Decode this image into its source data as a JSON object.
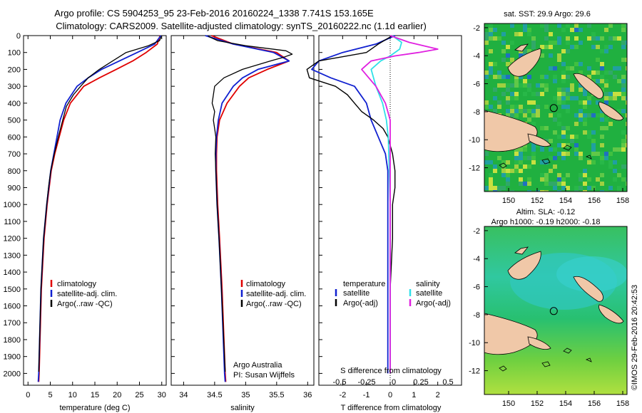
{
  "title_line1": "Argo profile: CS 5904253_95 23-Feb-2016 20160224_1338 7.741S 153.165E",
  "title_line2": "Climatology: CARS2009. Satellite-adjusted climatology: synTS_20160222.nc (1.1d earlier)",
  "colors": {
    "climatology": "#e00000",
    "satellite": "#1020d0",
    "argo": "#000000",
    "sal_sat": "#30e0e8",
    "sal_argo": "#e020e0",
    "land": "#f0c8a8",
    "map_bg": "#20b040"
  },
  "chart_data": [
    {
      "type": "line",
      "id": "temperature",
      "xlabel": "temperature (deg C)",
      "ylabel": "",
      "xlim": [
        -1,
        31
      ],
      "ylim": [
        2070,
        0
      ],
      "xticks": [
        0,
        5,
        10,
        15,
        20,
        25,
        30
      ],
      "yticks": [
        0,
        100,
        200,
        300,
        400,
        500,
        600,
        700,
        800,
        900,
        1000,
        1100,
        1200,
        1300,
        1400,
        1500,
        1600,
        1700,
        1800,
        1900,
        2000
      ],
      "legend": [
        "climatology",
        "satellite-adj. clim.",
        "Argo(..raw -QC)"
      ],
      "series": [
        {
          "name": "climatology",
          "depth": [
            0,
            50,
            100,
            150,
            200,
            250,
            300,
            400,
            500,
            600,
            700,
            800,
            1000,
            1200,
            1500,
            1800,
            2000,
            2050
          ],
          "values": [
            29.6,
            29.0,
            26.5,
            23.5,
            19.8,
            16.0,
            12.5,
            9.5,
            8.0,
            7.0,
            6.0,
            5.2,
            4.3,
            3.6,
            3.0,
            2.7,
            2.5,
            2.4
          ]
        },
        {
          "name": "satellite-adj. clim.",
          "depth": [
            0,
            50,
            100,
            150,
            200,
            250,
            300,
            400,
            500,
            600,
            700,
            800,
            1000,
            1200,
            1500,
            1800,
            2000,
            2050
          ],
          "values": [
            29.8,
            28.4,
            24.5,
            20.5,
            16.5,
            13.5,
            11.0,
            8.5,
            7.2,
            6.5,
            5.8,
            5.1,
            4.2,
            3.5,
            2.9,
            2.6,
            2.4,
            2.3
          ]
        },
        {
          "name": "Argo(..raw -QC)",
          "depth": [
            5,
            30,
            60,
            100,
            150,
            200,
            250,
            300,
            350,
            420,
            500,
            600,
            700,
            800,
            900,
            1000,
            1200,
            1500,
            1800,
            1990
          ],
          "values": [
            29.9,
            29.5,
            27.0,
            22.0,
            19.0,
            16.0,
            13.5,
            11.8,
            10.2,
            8.6,
            7.8,
            6.8,
            5.9,
            5.1,
            4.6,
            4.2,
            3.5,
            2.9,
            2.6,
            2.4
          ]
        }
      ]
    },
    {
      "type": "line",
      "id": "salinity",
      "xlabel": "salinity",
      "xlim": [
        33.8,
        36.1
      ],
      "ylim": [
        2070,
        0
      ],
      "xticks": [
        34,
        34.5,
        35,
        35.5,
        36
      ],
      "legend": [
        "climatology",
        "satellite-adj. clim.",
        "Argo(..raw -QC)"
      ],
      "annotation": [
        "Argo Australia",
        "PI: Susan Wijffels"
      ],
      "series": [
        {
          "name": "climatology",
          "depth": [
            0,
            50,
            100,
            150,
            200,
            250,
            300,
            400,
            500,
            600,
            700,
            800,
            1000,
            1200,
            1500,
            2000,
            2050
          ],
          "values": [
            34.45,
            34.8,
            35.5,
            35.7,
            35.35,
            35.05,
            34.9,
            34.7,
            34.58,
            34.54,
            34.53,
            34.53,
            34.55,
            34.58,
            34.62,
            34.67,
            34.68
          ]
        },
        {
          "name": "satellite-adj. clim.",
          "depth": [
            0,
            50,
            100,
            150,
            200,
            250,
            300,
            400,
            500,
            600,
            700,
            800,
            1000,
            1200,
            1500,
            2000,
            2050
          ],
          "values": [
            34.35,
            34.8,
            35.45,
            35.7,
            35.2,
            34.95,
            34.8,
            34.62,
            34.56,
            34.53,
            34.52,
            34.52,
            34.54,
            34.57,
            34.61,
            34.66,
            34.67
          ]
        },
        {
          "name": "Argo(..raw -QC)",
          "depth": [
            5,
            30,
            60,
            90,
            110,
            130,
            150,
            200,
            250,
            300,
            400,
            450,
            500,
            550,
            600,
            700,
            800,
            1000,
            1200,
            1500,
            1990
          ],
          "values": [
            34.4,
            34.55,
            35.0,
            35.65,
            35.75,
            35.6,
            35.4,
            34.95,
            34.65,
            34.5,
            34.46,
            34.5,
            34.48,
            34.5,
            34.52,
            34.51,
            34.52,
            34.54,
            34.57,
            34.61,
            34.67
          ]
        }
      ]
    },
    {
      "type": "line",
      "id": "difference",
      "xlabel_top": "S difference from climatology",
      "xlabel": "T difference from climatology",
      "xlim": [
        -3,
        3
      ],
      "ylim": [
        2070,
        0
      ],
      "xticks": [
        -2,
        -1,
        0,
        1,
        2
      ],
      "xticklabels_top": [
        "-0.5",
        "-0.25",
        "0",
        "0.25",
        "0.5"
      ],
      "legend_temp_title": "temperature",
      "legend_sal_title": "salinity",
      "legend": [
        "satellite",
        "Argo(-adj)",
        "satellite",
        "Argo(-adj)"
      ],
      "series": [
        {
          "name": "T satellite",
          "depth": [
            0,
            50,
            100,
            150,
            200,
            250,
            300,
            400,
            500,
            600,
            700,
            800,
            1000,
            1500,
            2000
          ],
          "values": [
            0.2,
            -0.6,
            -2.0,
            -3.0,
            -3.3,
            -2.5,
            -1.5,
            -1.0,
            -0.8,
            -0.5,
            -0.2,
            -0.1,
            -0.1,
            -0.1,
            -0.1
          ]
        },
        {
          "name": "T Argo(-adj)",
          "depth": [
            0,
            50,
            100,
            150,
            200,
            250,
            300,
            350,
            400,
            450,
            500,
            550,
            600,
            700,
            800,
            900,
            1000,
            1200,
            1500,
            2000
          ],
          "values": [
            0.1,
            -0.5,
            -1.0,
            -3.0,
            -3.5,
            -3.4,
            -2.3,
            -1.8,
            -1.5,
            -1.2,
            -0.7,
            -0.3,
            -0.1,
            0.1,
            0.2,
            0.2,
            0.1,
            0.1,
            0.0,
            0.0
          ]
        },
        {
          "name": "S satellite",
          "depth": [
            0,
            40,
            80,
            120,
            150,
            200,
            300,
            400,
            500,
            600,
            800,
            1000,
            1500,
            2000
          ],
          "values": [
            0.02,
            0.12,
            0.1,
            0.0,
            -0.1,
            -0.2,
            -0.15,
            -0.08,
            -0.04,
            -0.02,
            -0.01,
            0.0,
            0.0,
            0.0
          ]
        },
        {
          "name": "S Argo(-adj)",
          "depth": [
            0,
            40,
            80,
            100,
            120,
            150,
            200,
            300,
            400,
            500,
            600,
            800,
            1000,
            1500,
            2000
          ],
          "values": [
            0.0,
            0.2,
            0.5,
            0.3,
            0.05,
            -0.2,
            -0.3,
            -0.15,
            -0.05,
            0.0,
            0.0,
            0.0,
            0.0,
            0.0,
            0.0
          ]
        }
      ]
    },
    {
      "type": "heatmap",
      "id": "sst_map",
      "title": "sat. SST: 29.9 Argo: 29.6",
      "xticks": [
        150,
        152,
        154,
        156,
        158
      ],
      "yticks": [
        -2,
        -4,
        -6,
        -8,
        -10,
        -12
      ],
      "xlim": [
        148.3,
        158.3
      ],
      "ylim": [
        -13.7,
        -1.7
      ],
      "argo_position": [
        153.165,
        -7.741
      ]
    },
    {
      "type": "heatmap",
      "id": "sla_map",
      "title_line1": "Altim. SLA: -0.12",
      "title_line2": "Argo h1000: -0.19 h2000: -0.18",
      "xticks": [
        150,
        152,
        154,
        156,
        158
      ],
      "yticks": [
        -2,
        -4,
        -6,
        -8,
        -10,
        -12
      ],
      "xlim": [
        148.3,
        158.3
      ],
      "ylim": [
        -13.7,
        -1.7
      ],
      "argo_position": [
        153.165,
        -7.741
      ]
    }
  ],
  "credit": "©IMOS 29-Feb-2016 20:42:53"
}
